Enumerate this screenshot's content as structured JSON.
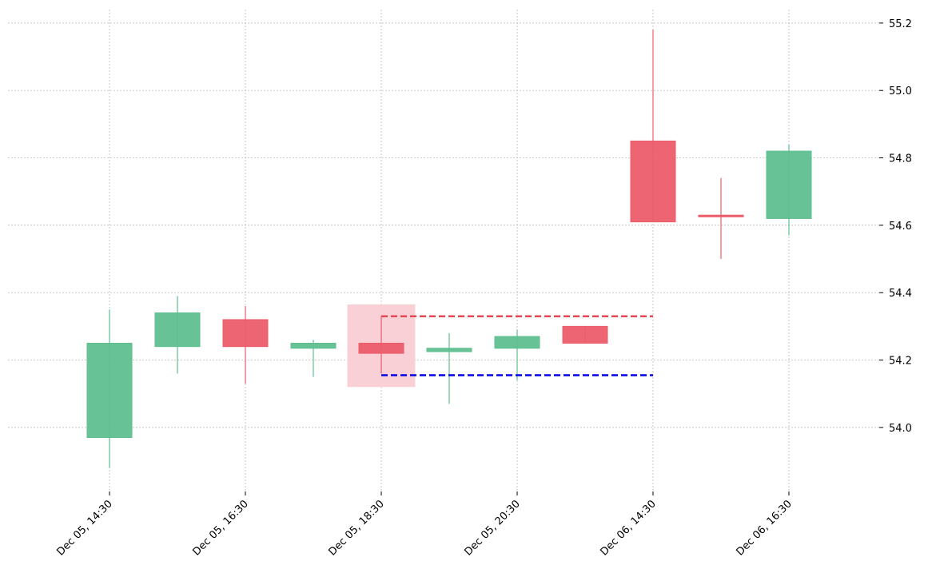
{
  "chart_data": {
    "type": "candlestick",
    "categories": [
      "Dec 05, 14:30",
      null,
      "Dec 05, 16:30",
      null,
      "Dec 05, 18:30",
      null,
      "Dec 05, 20:30",
      null,
      "Dec 06, 14:30",
      null,
      "Dec 06, 16:30"
    ],
    "open": [
      53.97,
      54.24,
      54.32,
      54.235,
      54.25,
      54.225,
      54.235,
      54.3,
      54.85,
      54.63,
      54.62
    ],
    "high": [
      54.35,
      54.39,
      54.36,
      54.26,
      54.33,
      54.28,
      54.29,
      54.3,
      55.18,
      54.74,
      54.84
    ],
    "low": [
      53.88,
      54.16,
      54.13,
      54.15,
      54.16,
      54.07,
      54.14,
      54.25,
      54.61,
      54.5,
      54.57
    ],
    "close": [
      54.25,
      54.34,
      54.24,
      54.25,
      54.22,
      54.235,
      54.27,
      54.25,
      54.61,
      54.625,
      54.82
    ],
    "up_color": "#5fbf8f",
    "down_color": "#ec5c6a",
    "ylim": [
      53.81,
      55.24
    ],
    "yticks": [
      {
        "value": 54,
        "label": "54.0"
      },
      54.2,
      54.4,
      54.6,
      54.8,
      {
        "value": 55,
        "label": "55.0"
      },
      55.2
    ],
    "grid": true,
    "highlight": {
      "index": 4,
      "range": [
        54.12,
        54.365
      ],
      "color": "#f8d0d5"
    },
    "levels": [
      {
        "value": 54.33,
        "from_index": 4,
        "to_index": 8,
        "color": "#e84855"
      },
      {
        "value": 54.155,
        "from_index": 4,
        "to_index": 8,
        "color": "#0000ee"
      }
    ]
  }
}
